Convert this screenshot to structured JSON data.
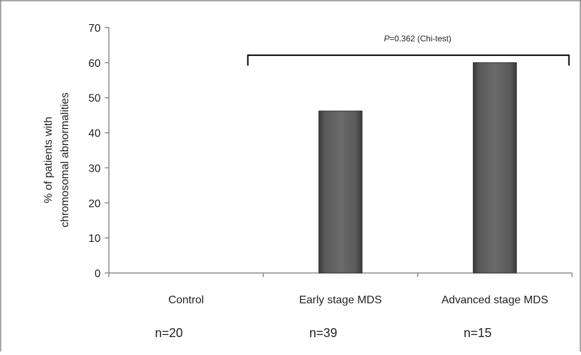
{
  "chart_data": {
    "type": "bar",
    "categories": [
      "Control",
      "Early stage MDS",
      "Advanced stage MDS"
    ],
    "values": [
      0,
      46.2,
      60
    ],
    "sample_sizes": [
      "n=20",
      "n=39",
      "n=15"
    ],
    "ylabel_line1": "% of patients with",
    "ylabel_line2": "chromosomal abnormalities",
    "ylim": [
      0,
      70
    ],
    "yticks": [
      0,
      10,
      20,
      30,
      40,
      50,
      60,
      70
    ],
    "grid": false,
    "bar_color": "#555555",
    "annotation": {
      "p_symbol": "P",
      "p_text": "=0.362 (Chi-test)",
      "bracket_from": "Early stage MDS",
      "bracket_to": "Advanced stage MDS"
    }
  }
}
